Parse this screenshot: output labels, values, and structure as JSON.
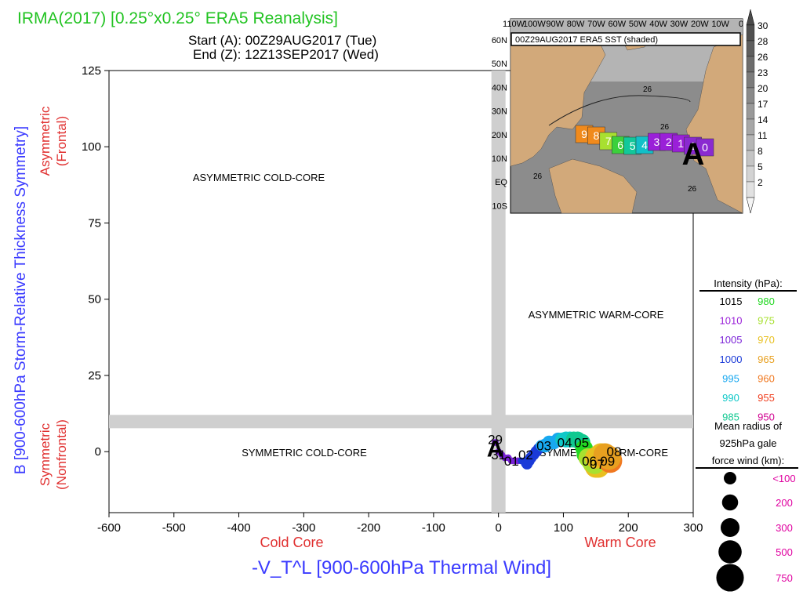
{
  "header": {
    "title": "IRMA(2017) [0.25°x0.25° ERA5 Reanalysis]",
    "start": "Start (A): 00Z29AUG2017 (Tue)",
    "end": "End (Z): 12Z13SEP2017 (Wed)"
  },
  "colors": {
    "title": "#22c322",
    "axis_label_blue": "#3a3aff",
    "axis_label_red": "#e03030",
    "legend_magenta": "#e000a0",
    "guide_band": "#cfcfcf",
    "sst_land": "#d2a97a",
    "sst_ocean": "#8c8c8c"
  },
  "chart_data": [
    {
      "type": "scatter",
      "title": "",
      "xlabel": "-V_T^L [900-600hPa Thermal Wind]",
      "ylabel": "B [900-600hPa Storm-Relative Thickness Symmetry]",
      "xlim": [
        -600,
        300
      ],
      "ylim": [
        -20,
        125
      ],
      "xticks": [
        -600,
        -500,
        -400,
        -300,
        -200,
        -100,
        0,
        100,
        200,
        300
      ],
      "yticks": [
        0,
        25,
        50,
        75,
        100,
        125
      ],
      "x_side_labels": {
        "left": "Cold Core",
        "right": "Warm Core"
      },
      "y_side_labels": {
        "upper": [
          "Asymmetric",
          "(Frontal)"
        ],
        "lower": [
          "Symmetric",
          "(Nonfrontal)"
        ]
      },
      "quadrant_labels": {
        "top_left": "ASYMMETRIC COLD-CORE",
        "top_right": "ASYMMETRIC WARM-CORE",
        "bottom_left": "SYMMETRIC COLD-CORE",
        "bottom_right": "SYMMETRIC WARM-CORE"
      },
      "guide_bands": {
        "x": 0,
        "y": 10
      },
      "start_marker": {
        "label": "A",
        "x": -5,
        "y": 2
      },
      "track_labels": [
        {
          "text": "29",
          "x": -5,
          "y": 4
        },
        {
          "text": "31",
          "x": 0,
          "y": -1
        },
        {
          "text": "01",
          "x": 20,
          "y": -3
        },
        {
          "text": "02",
          "x": 42,
          "y": -1
        },
        {
          "text": "03",
          "x": 70,
          "y": 2
        },
        {
          "text": "04",
          "x": 102,
          "y": 3
        },
        {
          "text": "05",
          "x": 128,
          "y": 3
        },
        {
          "text": "06",
          "x": 140,
          "y": -3
        },
        {
          "text": "07",
          "x": 152,
          "y": -4
        },
        {
          "text": "08",
          "x": 178,
          "y": 0
        },
        {
          "text": "09",
          "x": 168,
          "y": -3
        }
      ],
      "track": [
        {
          "x": -5,
          "y": 3,
          "p": 1008,
          "r": 100
        },
        {
          "x": 0,
          "y": 0,
          "p": 1008,
          "r": 100
        },
        {
          "x": 5,
          "y": -1,
          "p": 1007,
          "r": 100
        },
        {
          "x": 10,
          "y": -2,
          "p": 1006,
          "r": 100
        },
        {
          "x": 15,
          "y": -2,
          "p": 1006,
          "r": 100
        },
        {
          "x": 20,
          "y": -3,
          "p": 1005,
          "r": 100
        },
        {
          "x": 25,
          "y": -3,
          "p": 1005,
          "r": 100
        },
        {
          "x": 30,
          "y": -3,
          "p": 1005,
          "r": 100
        },
        {
          "x": 35,
          "y": -3,
          "p": 1004,
          "r": 100
        },
        {
          "x": 40,
          "y": -4,
          "p": 1004,
          "r": 100
        },
        {
          "x": 44,
          "y": -4,
          "p": 1003,
          "r": 150
        },
        {
          "x": 47,
          "y": -3,
          "p": 1003,
          "r": 150
        },
        {
          "x": 50,
          "y": -2,
          "p": 1002,
          "r": 150
        },
        {
          "x": 54,
          "y": -1,
          "p": 1001,
          "r": 150
        },
        {
          "x": 58,
          "y": 0,
          "p": 1001,
          "r": 150
        },
        {
          "x": 62,
          "y": 1,
          "p": 1000,
          "r": 150
        },
        {
          "x": 66,
          "y": 2,
          "p": 999,
          "r": 150
        },
        {
          "x": 72,
          "y": 2,
          "p": 998,
          "r": 200
        },
        {
          "x": 78,
          "y": 3,
          "p": 997,
          "r": 200
        },
        {
          "x": 85,
          "y": 3,
          "p": 996,
          "r": 200
        },
        {
          "x": 92,
          "y": 4,
          "p": 995,
          "r": 200
        },
        {
          "x": 98,
          "y": 4,
          "p": 994,
          "r": 200
        },
        {
          "x": 104,
          "y": 4,
          "p": 993,
          "r": 250
        },
        {
          "x": 110,
          "y": 4,
          "p": 991,
          "r": 250
        },
        {
          "x": 116,
          "y": 4,
          "p": 989,
          "r": 250
        },
        {
          "x": 122,
          "y": 4,
          "p": 987,
          "r": 250
        },
        {
          "x": 128,
          "y": 3,
          "p": 985,
          "r": 300
        },
        {
          "x": 132,
          "y": 1,
          "p": 982,
          "r": 300
        },
        {
          "x": 134,
          "y": -1,
          "p": 980,
          "r": 300
        },
        {
          "x": 138,
          "y": -2,
          "p": 978,
          "r": 350
        },
        {
          "x": 142,
          "y": -3,
          "p": 976,
          "r": 350
        },
        {
          "x": 146,
          "y": -4,
          "p": 975,
          "r": 400
        },
        {
          "x": 150,
          "y": -5,
          "p": 974,
          "r": 450
        },
        {
          "x": 154,
          "y": -5,
          "p": 973,
          "r": 450
        },
        {
          "x": 148,
          "y": -4,
          "p": 976,
          "r": 400
        },
        {
          "x": 145,
          "y": -3,
          "p": 978,
          "r": 400
        },
        {
          "x": 150,
          "y": -2,
          "p": 972,
          "r": 450
        },
        {
          "x": 158,
          "y": -1,
          "p": 970,
          "r": 500
        },
        {
          "x": 164,
          "y": -1,
          "p": 968,
          "r": 500
        },
        {
          "x": 168,
          "y": -2,
          "p": 966,
          "r": 550
        },
        {
          "x": 172,
          "y": -3,
          "p": 964,
          "r": 550
        },
        {
          "x": 170,
          "y": -2,
          "p": 965,
          "r": 550
        }
      ]
    },
    {
      "type": "map",
      "title": "00Z29AUG2017 ERA5 SST (shaded)",
      "lon_labels": [
        "110W",
        "100W",
        "90W",
        "80W",
        "70W",
        "60W",
        "50W",
        "40W",
        "30W",
        "20W",
        "10W",
        "0"
      ],
      "lat_labels": [
        "60N",
        "50N",
        "40N",
        "30N",
        "20N",
        "10N",
        "EQ",
        "10S"
      ],
      "isotherm_label": "26",
      "colorbar_ticks": [
        "30",
        "28",
        "26",
        "23",
        "20",
        "17",
        "14",
        "11",
        "8",
        "5",
        "2"
      ],
      "track_boxes": [
        {
          "label": "9",
          "color": "#f08a1c"
        },
        {
          "label": "8",
          "color": "#f08a1c"
        },
        {
          "label": "7",
          "color": "#a8e030"
        },
        {
          "label": "6",
          "color": "#3cd03c"
        },
        {
          "label": "5",
          "color": "#12c89a"
        },
        {
          "label": "4",
          "color": "#12c0c8"
        },
        {
          "label": "3",
          "color": "#9a20d8"
        },
        {
          "label": "2",
          "color": "#9a20d8"
        },
        {
          "label": "1",
          "color": "#9a20d8"
        },
        {
          "label": "1",
          "color": "#8a2ad0"
        },
        {
          "label": "0",
          "color": "#8a2ad0"
        }
      ],
      "start_marker": "A"
    }
  ],
  "legend": {
    "intensity_title": "Intensity (hPa):",
    "intensity": [
      {
        "label": "1015",
        "color": "#000000"
      },
      {
        "label": "980",
        "color": "#22d822"
      },
      {
        "label": "1010",
        "color": "#9a20d8"
      },
      {
        "label": "975",
        "color": "#a8e030"
      },
      {
        "label": "1005",
        "color": "#7a22d8"
      },
      {
        "label": "970",
        "color": "#e8c020"
      },
      {
        "label": "1000",
        "color": "#1a3ad8"
      },
      {
        "label": "965",
        "color": "#e8a020"
      },
      {
        "label": "995",
        "color": "#18a8f0"
      },
      {
        "label": "960",
        "color": "#f07820"
      },
      {
        "label": "990",
        "color": "#10c8c8"
      },
      {
        "label": "955",
        "color": "#f04020"
      },
      {
        "label": "985",
        "color": "#10c890"
      },
      {
        "label": "950",
        "color": "#d00090"
      }
    ],
    "radius_title": [
      "Mean radius of",
      "925hPa gale",
      "force wind (km):"
    ],
    "radius": [
      {
        "label": "<100",
        "km": 100
      },
      {
        "label": "200",
        "km": 200
      },
      {
        "label": "300",
        "km": 300
      },
      {
        "label": "500",
        "km": 500
      },
      {
        "label": "750",
        "km": 750
      }
    ]
  }
}
